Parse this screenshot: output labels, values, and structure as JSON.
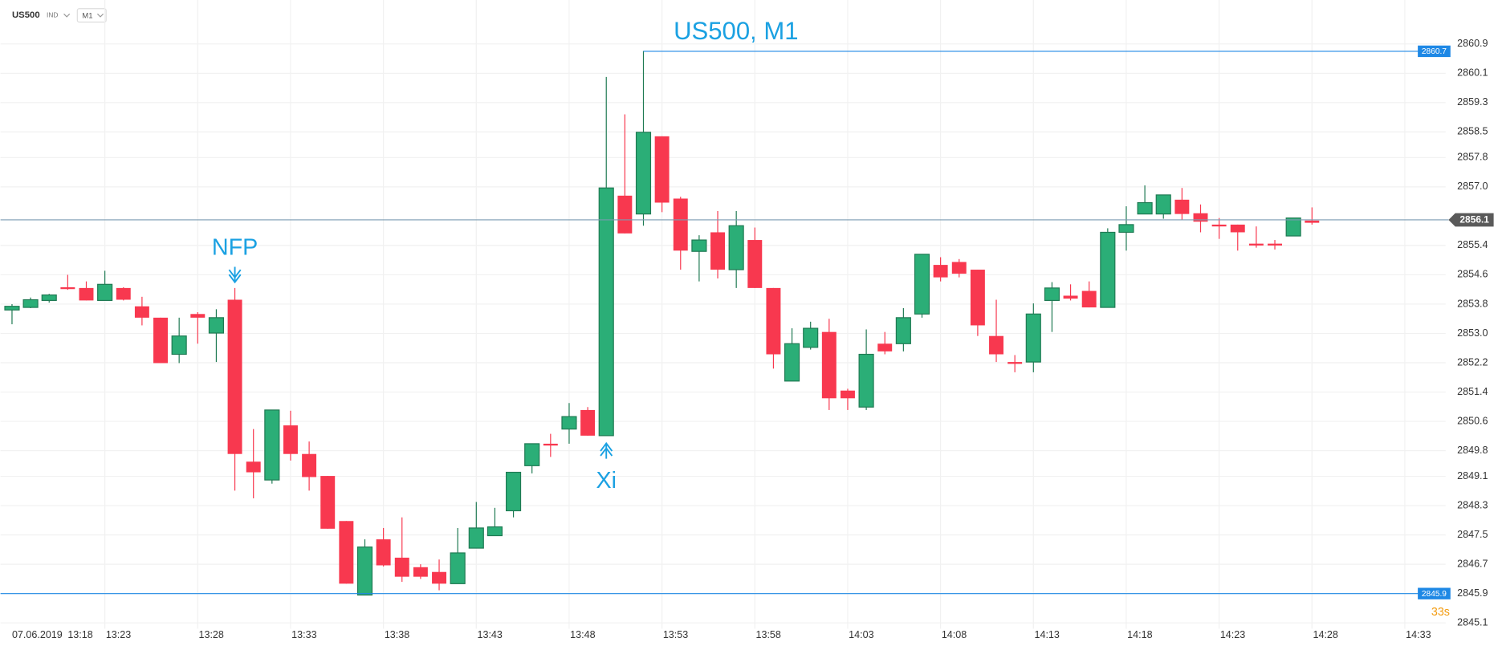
{
  "chart_data": {
    "type": "candlestick",
    "title": "US500, M1",
    "symbol": "US500",
    "market": "IND",
    "timeframe": "M1",
    "date": "07.06.2019",
    "countdown": "33s",
    "annotations": [
      "NFP",
      "Xi"
    ],
    "categories": [
      "13:18",
      null,
      null,
      null,
      null,
      "13:23",
      null,
      null,
      null,
      null,
      "13:28",
      null,
      null,
      null,
      null,
      "13:33",
      null,
      null,
      null,
      null,
      "13:38",
      null,
      null,
      null,
      null,
      "13:43",
      null,
      null,
      null,
      null,
      "13:48",
      null,
      null,
      null,
      null,
      "13:53",
      null,
      null,
      null,
      null,
      "13:58",
      null,
      null,
      null,
      null,
      "14:03",
      null,
      null,
      null,
      null,
      "14:08",
      null,
      null,
      null,
      null,
      "14:13",
      null,
      null,
      null,
      null,
      "14:18",
      null,
      null,
      null,
      null,
      "14:23",
      null,
      null,
      null,
      null,
      "14:28",
      null,
      null,
      null,
      null,
      "14:33"
    ],
    "open": [
      2853.64,
      2853.71,
      2853.9,
      2854.26,
      2854.24,
      2853.9,
      2854.24,
      2853.74,
      2853.43,
      2852.43,
      2853.53,
      2853.01,
      2853.92,
      2849.5,
      2849.0,
      2850.49,
      2849.71,
      2849.11,
      2847.88,
      2845.86,
      2847.38,
      2846.88,
      2846.62,
      2846.49,
      2846.17,
      2847.14,
      2847.48,
      2848.16,
      2849.39,
      2849.99,
      2850.39,
      2850.91,
      2850.21,
      2856.76,
      2856.26,
      2858.38,
      2856.68,
      2855.24,
      2855.76,
      2854.74,
      2855.55,
      2854.24,
      2851.7,
      2852.62,
      2853.04,
      2851.44,
      2850.99,
      2852.72,
      2852.72,
      2853.53,
      2854.87,
      2854.95,
      2854.74,
      2852.93,
      2852.22,
      2852.22,
      2853.9,
      2854.03,
      2854.16,
      2853.71,
      2855.76,
      2856.26,
      2856.26,
      2856.65,
      2856.28,
      2855.97,
      2855.97,
      2855.45,
      2855.45,
      2855.66,
      2856.08,
      null,
      null,
      null,
      null,
      null
    ],
    "high": [
      2853.8,
      2853.98,
      2854.08,
      2854.6,
      2854.42,
      2854.71,
      2854.26,
      2854.0,
      2853.43,
      2853.43,
      2853.58,
      2853.66,
      2854.24,
      2850.39,
      2850.91,
      2850.89,
      2850.05,
      2849.11,
      2847.88,
      2847.38,
      2847.69,
      2847.98,
      2846.7,
      2846.83,
      2847.69,
      2848.4,
      2848.24,
      2849.21,
      2849.99,
      2850.26,
      2851.1,
      2850.99,
      2860.0,
      2858.98,
      2860.71,
      2858.38,
      2856.73,
      2855.68,
      2856.34,
      2856.34,
      2855.89,
      2854.24,
      2853.14,
      2853.32,
      2853.4,
      2851.49,
      2853.11,
      2853.04,
      2853.69,
      2855.16,
      2855.08,
      2855.03,
      2854.74,
      2853.92,
      2852.41,
      2853.82,
      2854.4,
      2854.34,
      2854.42,
      2855.87,
      2856.47,
      2857.04,
      2856.78,
      2856.97,
      2856.52,
      2856.15,
      2855.97,
      2855.92,
      2855.55,
      2856.15,
      2856.44,
      null,
      null,
      null,
      null,
      null
    ],
    "low": [
      2853.25,
      2853.69,
      2853.84,
      2854.19,
      2853.9,
      2853.9,
      2853.9,
      2853.22,
      2852.19,
      2852.19,
      2852.72,
      2852.22,
      2848.71,
      2848.5,
      2848.9,
      2849.53,
      2848.71,
      2847.67,
      2846.17,
      2845.86,
      2846.64,
      2846.22,
      2846.3,
      2845.99,
      2846.17,
      2847.14,
      2847.48,
      2847.98,
      2849.18,
      2849.63,
      2849.99,
      2850.21,
      2850.21,
      2855.73,
      2855.94,
      2856.31,
      2854.74,
      2854.42,
      2854.5,
      2854.24,
      2854.24,
      2852.04,
      2851.7,
      2852.56,
      2850.91,
      2850.91,
      2850.91,
      2852.43,
      2852.51,
      2853.43,
      2854.42,
      2854.53,
      2852.93,
      2852.22,
      2851.94,
      2851.94,
      2853.04,
      2853.9,
      2853.71,
      2853.71,
      2855.26,
      2856.26,
      2856.13,
      2856.1,
      2855.76,
      2855.58,
      2855.26,
      2855.34,
      2855.29,
      2855.66,
      2855.97,
      null,
      null,
      null,
      null,
      null
    ],
    "close": [
      2853.74,
      2853.92,
      2854.05,
      2854.21,
      2853.9,
      2854.34,
      2853.92,
      2853.43,
      2852.19,
      2852.93,
      2853.43,
      2853.43,
      2849.71,
      2849.21,
      2850.91,
      2849.71,
      2849.08,
      2847.67,
      2846.17,
      2847.17,
      2846.67,
      2846.36,
      2846.36,
      2846.17,
      2847.01,
      2847.69,
      2847.72,
      2849.21,
      2849.99,
      2849.94,
      2850.73,
      2850.21,
      2856.97,
      2855.73,
      2858.49,
      2856.57,
      2855.26,
      2855.55,
      2854.74,
      2855.94,
      2854.24,
      2852.43,
      2852.72,
      2853.14,
      2851.23,
      2851.23,
      2852.43,
      2852.51,
      2853.43,
      2855.16,
      2854.53,
      2854.63,
      2853.22,
      2852.43,
      2852.17,
      2853.53,
      2854.24,
      2853.95,
      2853.71,
      2855.76,
      2855.97,
      2856.57,
      2856.78,
      2856.26,
      2856.05,
      2855.92,
      2855.76,
      2855.4,
      2855.4,
      2856.15,
      2856.02,
      null,
      null,
      null,
      null,
      null
    ],
    "up_color": "#2bae77",
    "down_color": "#f8384f",
    "current_price": 2856.1,
    "high_line": 2860.7,
    "low_line": 2845.9,
    "ylim": [
      2844.6,
      2862.1
    ],
    "yticks": [
      2860.9,
      2860.1,
      2859.3,
      2858.5,
      2857.8,
      {
        "value": 2857,
        "label": "2857.0"
      },
      2855.4,
      2854.6,
      2853.8,
      {
        "value": 2853,
        "label": "2853.0"
      },
      2852.2,
      2851.4,
      2850.6,
      2849.8,
      2849.1,
      2848.3,
      2847.5,
      2846.7,
      2845.9,
      2845.1
    ],
    "grid": true
  }
}
